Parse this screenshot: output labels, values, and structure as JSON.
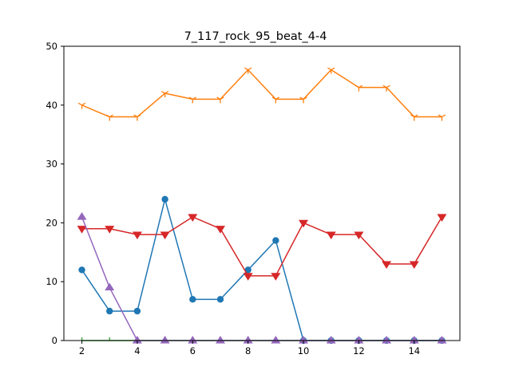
{
  "chart_data": {
    "type": "line",
    "title": "7_117_rock_95_beat_4-4",
    "xlabel": "",
    "ylabel": "",
    "xlim": [
      1.35,
      15.65
    ],
    "ylim": [
      0,
      50
    ],
    "xticks": [
      2,
      4,
      6,
      8,
      10,
      12,
      14
    ],
    "yticks": [
      0,
      10,
      20,
      30,
      40,
      50
    ],
    "grid": false,
    "x": [
      2,
      3,
      4,
      5,
      6,
      7,
      8,
      9,
      10,
      11,
      12,
      13,
      14,
      15
    ],
    "series": [
      {
        "color": "#1f77b4",
        "marker": "circle",
        "values": [
          12,
          5,
          5,
          24,
          7,
          7,
          12,
          17,
          0,
          0,
          0,
          0,
          0,
          0
        ]
      },
      {
        "color": "#ff7f0e",
        "marker": "tri_down",
        "values": [
          40,
          38,
          38,
          42,
          41,
          41,
          46,
          41,
          41,
          46,
          43,
          43,
          38,
          38
        ]
      },
      {
        "color": "#2ca02c",
        "marker": "tick",
        "values": [
          0,
          0,
          0,
          0,
          0,
          0,
          0,
          0,
          0,
          0,
          0,
          0,
          0,
          0
        ]
      },
      {
        "color": "#d62728",
        "marker": "triangle_down",
        "values": [
          19,
          19,
          18,
          18,
          21,
          19,
          11,
          11,
          20,
          18,
          18,
          13,
          13,
          21
        ]
      },
      {
        "color": "#9467bd",
        "marker": "triangle_up",
        "values": [
          21,
          9,
          0,
          0,
          0,
          0,
          0,
          0,
          0,
          0,
          0,
          0,
          0,
          0
        ]
      }
    ]
  }
}
